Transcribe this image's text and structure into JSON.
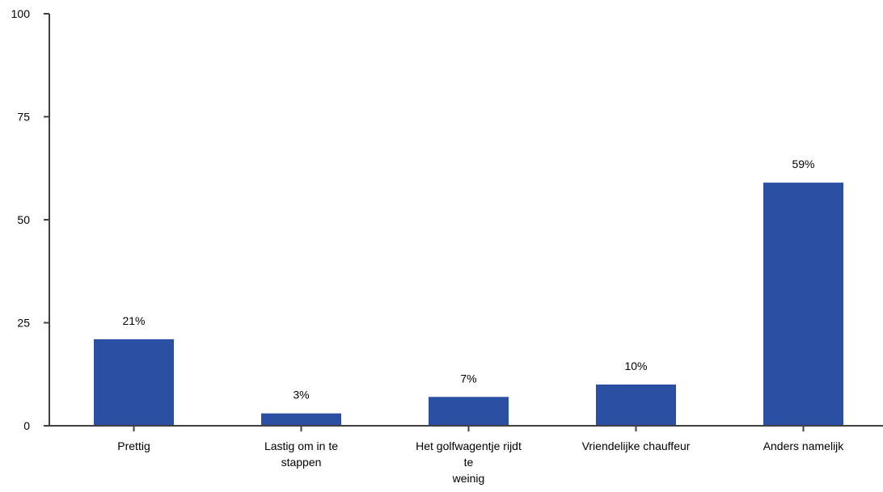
{
  "chart_data": {
    "type": "bar",
    "categories": [
      [
        "Prettig"
      ],
      [
        "Lastig om in te",
        "stappen"
      ],
      [
        "Het golfwagentje rijdt",
        "te",
        "weinig"
      ],
      [
        "Vriendelijke chauffeur"
      ],
      [
        "Anders namelijk"
      ]
    ],
    "values": [
      21,
      3,
      7,
      10,
      59
    ],
    "data_labels": [
      "21%",
      "3%",
      "7%",
      "10%",
      "59%"
    ],
    "yticks": [
      "0",
      "25",
      "50",
      "75",
      "100"
    ],
    "ylim": [
      0,
      100
    ],
    "bar_color": "#2a4fa3",
    "axis_color": "#404040",
    "grid": false,
    "legend": "none"
  }
}
